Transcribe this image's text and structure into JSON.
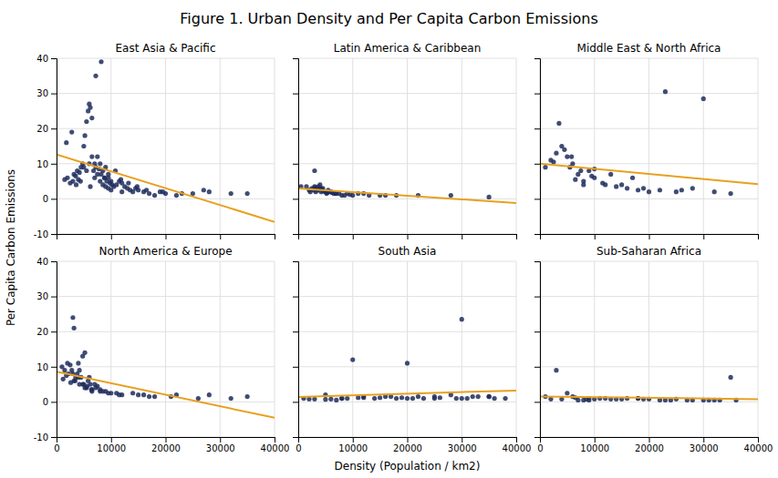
{
  "title": "Figure 1. Urban Density and Per Capita Carbon Emissions",
  "xlabel": "Density (Population / km2)",
  "ylabel": "Per Capita Carbon Emissions",
  "chart_data": [
    {
      "type": "scatter",
      "title": "East Asia & Pacific",
      "xlim": [
        0,
        40000
      ],
      "ylim": [
        -10,
        40
      ],
      "xticks": [
        0,
        10000,
        20000,
        30000,
        40000
      ],
      "yticks": [
        -10,
        0,
        10,
        20,
        30,
        40
      ],
      "grid": true,
      "tick_labels": "y",
      "series": [
        {
          "type": "scatter",
          "color": "#1f2d5c",
          "marker": "circle",
          "x": [
            1500,
            2000,
            2500,
            3000,
            3200,
            3500,
            3800,
            4000,
            4200,
            4500,
            4800,
            5000,
            5000,
            5200,
            5500,
            5500,
            5800,
            6000,
            6000,
            6200,
            6500,
            6500,
            6800,
            7000,
            7000,
            7200,
            7500,
            7500,
            7800,
            8000,
            8000,
            8200,
            8500,
            8500,
            8800,
            9000,
            9000,
            9200,
            9500,
            9500,
            9800,
            10000,
            10000,
            10200,
            10500,
            11000,
            11500,
            12000,
            12000,
            12500,
            13000,
            13500,
            14000,
            14500,
            15000,
            16000,
            17000,
            18000,
            19000,
            20000,
            22000,
            25000,
            28000,
            1800,
            2800,
            3600,
            4400,
            6200,
            7200,
            8200,
            8800,
            9500,
            10800,
            11800,
            13200,
            14800,
            16500,
            19500,
            23000,
            27000,
            32000,
            35000
          ],
          "values": [
            5.5,
            6.0,
            4.5,
            5.0,
            7.0,
            6.5,
            8.0,
            5.5,
            7.5,
            9.0,
            10.0,
            15.0,
            9.0,
            18.0,
            8.0,
            22.0,
            25.0,
            27.0,
            10.0,
            26.0,
            12.0,
            23.0,
            8.0,
            10.0,
            6.0,
            9.0,
            12.0,
            7.0,
            8.5,
            10.0,
            5.0,
            7.0,
            8.0,
            4.0,
            6.0,
            9.0,
            3.5,
            5.0,
            6.0,
            3.0,
            4.5,
            5.0,
            2.5,
            4.0,
            3.5,
            4.0,
            5.0,
            4.5,
            2.0,
            3.5,
            3.0,
            2.5,
            2.0,
            3.0,
            2.5,
            2.0,
            1.5,
            1.0,
            2.0,
            1.5,
            1.0,
            1.5,
            2.0,
            16.0,
            19.0,
            4.0,
            5.0,
            3.5,
            35.0,
            39.0,
            6.0,
            7.0,
            8.0,
            5.5,
            4.5,
            3.5,
            2.5,
            2.0,
            1.5,
            2.5,
            1.5,
            1.5
          ]
        },
        {
          "type": "line",
          "color": "#e8a020",
          "line_style": "solid",
          "x": [
            0,
            40000
          ],
          "values": [
            12.616,
            -6.562
          ]
        }
      ]
    },
    {
      "type": "scatter",
      "title": "Latin America & Caribbean",
      "xlim": [
        0,
        40000
      ],
      "ylim": [
        -10,
        40
      ],
      "xticks": [
        0,
        10000,
        20000,
        30000,
        40000
      ],
      "yticks": [
        -10,
        0,
        10,
        20,
        30,
        40
      ],
      "grid": true,
      "tick_labels": false,
      "series": [
        {
          "type": "scatter",
          "color": "#1f2d5c",
          "marker": "circle",
          "x": [
            500,
            1500,
            2000,
            2500,
            3000,
            3000,
            3200,
            3500,
            3800,
            4000,
            4500,
            5000,
            5500,
            6000,
            7000,
            8000,
            9000,
            10000,
            12000,
            15000,
            18000,
            22000,
            28000,
            35000,
            2200,
            2800,
            3400,
            4200,
            5200,
            6500,
            8500,
            11000,
            16000,
            3100,
            3300,
            3600,
            3700,
            4100,
            4300,
            4600,
            5100,
            5300,
            5700,
            6200,
            6800,
            7500,
            9500,
            13000
          ],
          "values": [
            3.5,
            3.5,
            2.5,
            3.0,
            3.5,
            8.0,
            2.0,
            2.5,
            3.0,
            4.0,
            3.0,
            2.0,
            2.5,
            2.0,
            1.5,
            1.0,
            1.5,
            1.0,
            1.5,
            1.0,
            1.0,
            1.0,
            1.0,
            0.5,
            2.0,
            2.5,
            3.0,
            2.0,
            1.5,
            1.5,
            1.0,
            1.5,
            1.0,
            3.2,
            2.8,
            2.5,
            3.5,
            3.0,
            2.8,
            2.2,
            2.0,
            1.8,
            2.0,
            1.8,
            1.5,
            1.5,
            1.2,
            1.0
          ]
        },
        {
          "type": "line",
          "color": "#e8a020",
          "line_style": "solid",
          "x": [
            0,
            40000
          ],
          "values": [
            2.949,
            -1.162
          ]
        }
      ]
    },
    {
      "type": "scatter",
      "title": "Middle East & North Africa",
      "xlim": [
        0,
        40000
      ],
      "ylim": [
        -10,
        40
      ],
      "xticks": [
        0,
        10000,
        20000,
        30000,
        40000
      ],
      "yticks": [
        -10,
        0,
        10,
        20,
        30,
        40
      ],
      "grid": true,
      "tick_labels": false,
      "series": [
        {
          "type": "scatter",
          "color": "#1f2d5c",
          "marker": "circle",
          "x": [
            1000,
            2000,
            3000,
            4000,
            5000,
            6000,
            7000,
            8000,
            9000,
            10000,
            12000,
            14000,
            16000,
            18000,
            20000,
            22000,
            25000,
            28000,
            32000,
            35000,
            3500,
            4500,
            5500,
            6500,
            8000,
            10000,
            13000,
            17000,
            23000,
            30000,
            2500,
            5800,
            7500,
            9500,
            11500,
            15000,
            19000,
            26000
          ],
          "values": [
            9.0,
            11.0,
            13.0,
            15.0,
            12.0,
            10.0,
            7.0,
            5.0,
            8.0,
            6.0,
            4.0,
            3.5,
            3.0,
            2.5,
            2.0,
            2.5,
            2.0,
            3.0,
            2.0,
            1.5,
            21.5,
            14.0,
            9.0,
            5.5,
            4.0,
            8.5,
            7.0,
            6.0,
            30.5,
            28.5,
            10.5,
            12.0,
            8.0,
            6.5,
            4.5,
            4.0,
            3.0,
            2.5
          ]
        },
        {
          "type": "line",
          "color": "#e8a020",
          "line_style": "solid",
          "x": [
            0,
            40000
          ],
          "values": [
            9.983,
            4.174
          ]
        }
      ]
    },
    {
      "type": "scatter",
      "title": "North America & Europe",
      "xlim": [
        0,
        40000
      ],
      "ylim": [
        -10,
        40
      ],
      "xticks": [
        0,
        10000,
        20000,
        30000,
        40000
      ],
      "yticks": [
        -10,
        0,
        10,
        20,
        30,
        40
      ],
      "grid": true,
      "series": [
        {
          "type": "scatter",
          "color": "#1f2d5c",
          "marker": "circle",
          "x": [
            1000,
            1500,
            2000,
            2500,
            3000,
            3000,
            3200,
            3500,
            3800,
            4000,
            4200,
            4500,
            4800,
            5000,
            5200,
            5500,
            5800,
            6000,
            6200,
            6500,
            7000,
            7500,
            8000,
            9000,
            10000,
            12000,
            15000,
            18000,
            22000,
            28000,
            35000,
            2200,
            2800,
            3400,
            4200,
            5200,
            6500,
            8500,
            11000,
            16000,
            1200,
            1800,
            2600,
            3200,
            4000,
            4800,
            5600,
            6400,
            7200,
            8000,
            9500,
            11500,
            14000,
            17000,
            21000,
            26000,
            32000
          ],
          "values": [
            10.0,
            9.0,
            11.0,
            10.5,
            24.0,
            8.0,
            21.0,
            7.0,
            8.0,
            11.0,
            9.0,
            7.0,
            13.0,
            5.0,
            14.0,
            4.0,
            6.0,
            7.0,
            5.0,
            3.0,
            5.0,
            4.5,
            3.5,
            3.0,
            2.5,
            2.0,
            2.0,
            1.5,
            2.0,
            2.0,
            1.5,
            8.0,
            9.0,
            6.0,
            5.0,
            4.0,
            3.5,
            3.0,
            2.5,
            2.0,
            6.5,
            7.5,
            5.5,
            6.0,
            7.0,
            5.0,
            4.5,
            3.5,
            4.0,
            3.0,
            2.5,
            2.0,
            2.5,
            1.5,
            1.5,
            1.0,
            1.0
          ]
        },
        {
          "type": "line",
          "color": "#e8a020",
          "line_style": "solid",
          "x": [
            0,
            40000
          ],
          "values": [
            8.589,
            -4.525
          ]
        }
      ]
    },
    {
      "type": "scatter",
      "title": "South Asia",
      "xlim": [
        0,
        40000
      ],
      "ylim": [
        -10,
        40
      ],
      "xticks": [
        0,
        10000,
        20000,
        30000,
        40000
      ],
      "yticks": [
        -10,
        0,
        10,
        20,
        30,
        40
      ],
      "grid": true,
      "tick_labels": "x",
      "series": [
        {
          "type": "scatter",
          "color": "#1f2d5c",
          "marker": "circle",
          "x": [
            1000,
            2000,
            5000,
            7000,
            8000,
            10000,
            12000,
            15000,
            18000,
            20000,
            22000,
            25000,
            28000,
            30000,
            32000,
            35000,
            38000,
            3000,
            5000,
            8000,
            12000,
            16000,
            20000,
            25000,
            30000,
            35000,
            6000,
            9000,
            11000,
            14000,
            17000,
            19000,
            21000,
            23000,
            26000,
            29000,
            31000,
            33000,
            36000
          ],
          "values": [
            1.0,
            0.8,
            0.7,
            0.5,
            1.0,
            12.0,
            1.5,
            1.2,
            1.0,
            11.0,
            1.5,
            1.0,
            2.0,
            23.5,
            1.5,
            1.5,
            1.0,
            0.8,
            2.0,
            1.0,
            1.2,
            1.5,
            1.0,
            1.5,
            1.0,
            1.5,
            0.8,
            1.0,
            1.2,
            1.0,
            1.5,
            1.2,
            1.0,
            1.0,
            1.2,
            1.0,
            1.0,
            1.5,
            1.0
          ]
        },
        {
          "type": "line",
          "color": "#e8a020",
          "line_style": "solid",
          "x": [
            0,
            40000
          ],
          "values": [
            1.409,
            3.235
          ]
        }
      ]
    },
    {
      "type": "scatter",
      "title": "Sub-Saharan Africa",
      "xlim": [
        0,
        40000
      ],
      "ylim": [
        -10,
        40
      ],
      "xticks": [
        0,
        10000,
        20000,
        30000,
        40000
      ],
      "yticks": [
        -10,
        0,
        10,
        20,
        30,
        40
      ],
      "grid": true,
      "tick_labels": "x",
      "series": [
        {
          "type": "scatter",
          "color": "#1f2d5c",
          "marker": "circle",
          "x": [
            1000,
            2000,
            3000,
            5000,
            7000,
            8000,
            9000,
            10000,
            12000,
            14000,
            16000,
            18000,
            20000,
            22000,
            25000,
            28000,
            30000,
            32000,
            35000,
            4000,
            6000,
            9000,
            13000,
            18000,
            24000,
            31000,
            36000,
            6500,
            8500,
            11000,
            15000,
            19000,
            23000,
            27000,
            33000
          ],
          "values": [
            1.5,
            0.8,
            9.0,
            2.5,
            0.5,
            0.5,
            0.5,
            0.8,
            1.0,
            0.8,
            1.0,
            1.0,
            0.8,
            0.5,
            0.8,
            0.5,
            0.5,
            0.5,
            7.0,
            0.8,
            1.5,
            1.0,
            0.8,
            1.0,
            0.5,
            0.5,
            0.5,
            1.2,
            0.8,
            1.0,
            0.8,
            0.8,
            0.5,
            0.5,
            0.5
          ]
        },
        {
          "type": "line",
          "color": "#e8a020",
          "line_style": "solid",
          "x": [
            0,
            40000
          ],
          "values": [
            1.554,
            0.783
          ]
        }
      ]
    }
  ]
}
